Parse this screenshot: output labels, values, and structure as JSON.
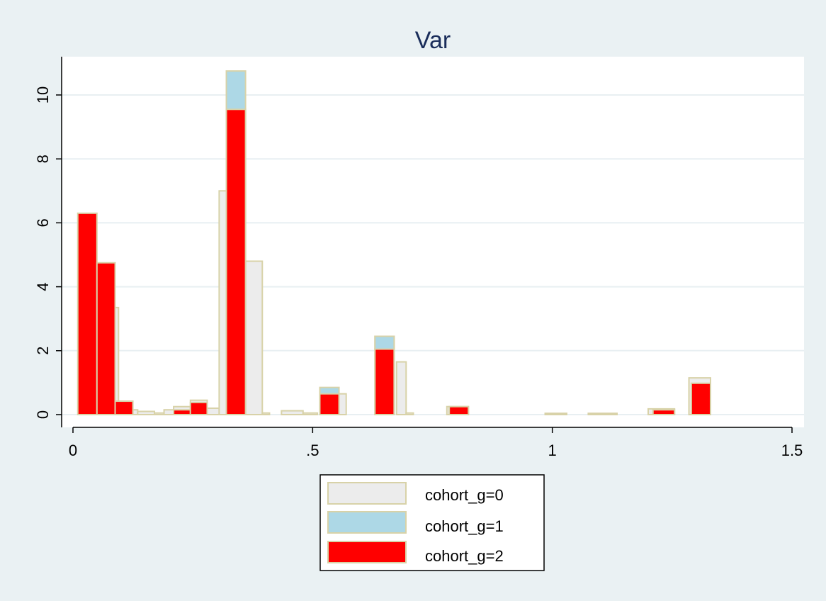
{
  "chart_data": {
    "type": "bar",
    "title": "Var",
    "xlabel": "",
    "ylabel": "",
    "xlim": [
      0,
      1.5
    ],
    "ylim": [
      0,
      11
    ],
    "x_ticks": [
      {
        "value": 0,
        "label": "0"
      },
      {
        "value": 0.5,
        "label": ".5"
      },
      {
        "value": 1,
        "label": "1"
      },
      {
        "value": 1.5,
        "label": "1.5"
      }
    ],
    "y_ticks": [
      {
        "value": 0,
        "label": "0"
      },
      {
        "value": 2,
        "label": "2"
      },
      {
        "value": 4,
        "label": "4"
      },
      {
        "value": 6,
        "label": "6"
      },
      {
        "value": 8,
        "label": "8"
      },
      {
        "value": 10,
        "label": "10"
      }
    ],
    "grid": true,
    "legend_position": "bottom",
    "series": [
      {
        "name": "cohort_g=0",
        "color": "#ececec",
        "outline": "#d8d2a8",
        "bars": [
          {
            "x0": 0.085,
            "x1": 0.095,
            "y": 3.35
          },
          {
            "x0": 0.125,
            "x1": 0.135,
            "y": 0.15
          },
          {
            "x0": 0.135,
            "x1": 0.17,
            "y": 0.1
          },
          {
            "x0": 0.17,
            "x1": 0.19,
            "y": 0.05
          },
          {
            "x0": 0.19,
            "x1": 0.21,
            "y": 0.15
          },
          {
            "x0": 0.21,
            "x1": 0.245,
            "y": 0.25
          },
          {
            "x0": 0.245,
            "x1": 0.28,
            "y": 0.45
          },
          {
            "x0": 0.28,
            "x1": 0.305,
            "y": 0.2
          },
          {
            "x0": 0.305,
            "x1": 0.32,
            "y": 7.0
          },
          {
            "x0": 0.36,
            "x1": 0.395,
            "y": 4.8
          },
          {
            "x0": 0.395,
            "x1": 0.41,
            "y": 0.05
          },
          {
            "x0": 0.435,
            "x1": 0.48,
            "y": 0.12
          },
          {
            "x0": 0.48,
            "x1": 0.51,
            "y": 0.05
          },
          {
            "x0": 0.555,
            "x1": 0.57,
            "y": 0.65
          },
          {
            "x0": 0.63,
            "x1": 0.67,
            "y": 2.45
          },
          {
            "x0": 0.675,
            "x1": 0.695,
            "y": 1.65
          },
          {
            "x0": 0.695,
            "x1": 0.71,
            "y": 0.05
          },
          {
            "x0": 0.78,
            "x1": 0.825,
            "y": 0.25
          },
          {
            "x0": 0.985,
            "x1": 1.03,
            "y": 0.04
          },
          {
            "x0": 1.075,
            "x1": 1.135,
            "y": 0.04
          },
          {
            "x0": 1.2,
            "x1": 1.255,
            "y": 0.18
          },
          {
            "x0": 1.285,
            "x1": 1.33,
            "y": 1.15
          }
        ]
      },
      {
        "name": "cohort_g=1",
        "color": "#add8e6",
        "outline": "#d8d2a8",
        "bars": [
          {
            "x0": 0.32,
            "x1": 0.36,
            "y": 10.75
          },
          {
            "x0": 0.515,
            "x1": 0.555,
            "y": 0.85
          },
          {
            "x0": 0.63,
            "x1": 0.67,
            "y": 2.45
          }
        ]
      },
      {
        "name": "cohort_g=2",
        "color": "#ff0000",
        "outline": "#d8d2a8",
        "bars": [
          {
            "x0": 0.01,
            "x1": 0.05,
            "y": 6.3
          },
          {
            "x0": 0.05,
            "x1": 0.088,
            "y": 4.75
          },
          {
            "x0": 0.088,
            "x1": 0.125,
            "y": 0.42
          },
          {
            "x0": 0.21,
            "x1": 0.245,
            "y": 0.15
          },
          {
            "x0": 0.245,
            "x1": 0.28,
            "y": 0.38
          },
          {
            "x0": 0.32,
            "x1": 0.36,
            "y": 9.55
          },
          {
            "x0": 0.515,
            "x1": 0.555,
            "y": 0.65
          },
          {
            "x0": 0.63,
            "x1": 0.67,
            "y": 2.05
          },
          {
            "x0": 0.785,
            "x1": 0.825,
            "y": 0.25
          },
          {
            "x0": 1.21,
            "x1": 1.255,
            "y": 0.15
          },
          {
            "x0": 1.29,
            "x1": 1.33,
            "y": 0.98
          }
        ]
      }
    ]
  }
}
